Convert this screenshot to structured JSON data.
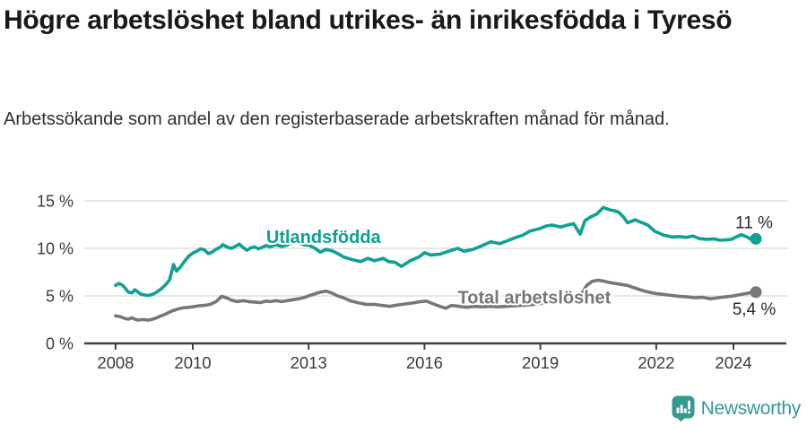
{
  "header": {
    "title": "Högre arbetslöshet bland utrikes- än inrikesfödda i Tyresö",
    "subtitle": "Arbetssökande som andel av den registerbaserade arbetskraften månad för månad."
  },
  "chart_data": {
    "type": "line",
    "title": "Högre arbetslöshet bland utrikes- än inrikesfödda i Tyresö",
    "subtitle": "Arbetssökande som andel av den registerbaserade arbetskraften månad för månad.",
    "grid": "horizontal",
    "legend_position": "inline-labels",
    "x_axis": {
      "ticks": [
        2008,
        2010,
        2013,
        2016,
        2019,
        2022,
        2024
      ],
      "labels": [
        "2008",
        "2010",
        "2013",
        "2016",
        "2019",
        "2022",
        "2024"
      ],
      "range": [
        2007.19,
        2025.37
      ]
    },
    "y_axis": {
      "ticks": [
        0,
        5,
        10,
        15
      ],
      "labels": [
        "0 %",
        "5 %",
        "10 %",
        "15 %"
      ],
      "range": [
        0,
        15
      ]
    },
    "colors": {
      "axis": "#3f3f3f",
      "grid": "#d8d8d8",
      "tick_text": "#3a3a3a",
      "value_text": "#2a2a2a"
    },
    "series": [
      {
        "name": "Utlandsfödda",
        "color": "#0fa194",
        "end_label": "11 %",
        "end_value": 11.0,
        "label_anchor": {
          "year": 2011.9,
          "value": 10.55
        },
        "end_label_offset": [
          -2,
          -12
        ],
        "points": [
          [
            2008.0,
            6.1
          ],
          [
            2008.08,
            6.3
          ],
          [
            2008.17,
            6.15
          ],
          [
            2008.25,
            5.8
          ],
          [
            2008.33,
            5.4
          ],
          [
            2008.42,
            5.3
          ],
          [
            2008.5,
            5.65
          ],
          [
            2008.58,
            5.4
          ],
          [
            2008.67,
            5.15
          ],
          [
            2008.75,
            5.1
          ],
          [
            2008.83,
            5.05
          ],
          [
            2008.92,
            5.1
          ],
          [
            2009.0,
            5.25
          ],
          [
            2009.1,
            5.5
          ],
          [
            2009.2,
            5.8
          ],
          [
            2009.3,
            6.2
          ],
          [
            2009.4,
            6.7
          ],
          [
            2009.5,
            8.3
          ],
          [
            2009.58,
            7.6
          ],
          [
            2009.67,
            8.0
          ],
          [
            2009.78,
            8.6
          ],
          [
            2009.9,
            9.2
          ],
          [
            2010.0,
            9.5
          ],
          [
            2010.1,
            9.7
          ],
          [
            2010.2,
            9.95
          ],
          [
            2010.3,
            9.85
          ],
          [
            2010.4,
            9.45
          ],
          [
            2010.5,
            9.6
          ],
          [
            2010.6,
            9.9
          ],
          [
            2010.7,
            10.1
          ],
          [
            2010.78,
            10.4
          ],
          [
            2010.88,
            10.15
          ],
          [
            2011.0,
            10.0
          ],
          [
            2011.1,
            10.2
          ],
          [
            2011.2,
            10.45
          ],
          [
            2011.3,
            10.1
          ],
          [
            2011.4,
            9.8
          ],
          [
            2011.5,
            10.05
          ],
          [
            2011.6,
            10.15
          ],
          [
            2011.7,
            9.95
          ],
          [
            2011.8,
            10.1
          ],
          [
            2011.9,
            10.3
          ],
          [
            2012.0,
            10.15
          ],
          [
            2012.15,
            10.4
          ],
          [
            2012.3,
            10.2
          ],
          [
            2012.45,
            10.35
          ],
          [
            2012.6,
            10.75
          ],
          [
            2012.75,
            10.55
          ],
          [
            2012.9,
            10.35
          ],
          [
            2013.0,
            10.35
          ],
          [
            2013.15,
            10.05
          ],
          [
            2013.3,
            9.6
          ],
          [
            2013.45,
            9.9
          ],
          [
            2013.6,
            9.75
          ],
          [
            2013.78,
            9.4
          ],
          [
            2013.9,
            9.1
          ],
          [
            2014.14,
            8.8
          ],
          [
            2014.35,
            8.6
          ],
          [
            2014.53,
            8.95
          ],
          [
            2014.7,
            8.7
          ],
          [
            2014.93,
            8.95
          ],
          [
            2015.07,
            8.6
          ],
          [
            2015.23,
            8.55
          ],
          [
            2015.4,
            8.1
          ],
          [
            2015.63,
            8.7
          ],
          [
            2015.86,
            9.1
          ],
          [
            2016.0,
            9.55
          ],
          [
            2016.16,
            9.3
          ],
          [
            2016.4,
            9.4
          ],
          [
            2016.7,
            9.8
          ],
          [
            2016.86,
            10.0
          ],
          [
            2017.02,
            9.7
          ],
          [
            2017.26,
            9.9
          ],
          [
            2017.5,
            10.3
          ],
          [
            2017.72,
            10.7
          ],
          [
            2017.95,
            10.5
          ],
          [
            2018.15,
            10.8
          ],
          [
            2018.33,
            11.1
          ],
          [
            2018.55,
            11.4
          ],
          [
            2018.72,
            11.8
          ],
          [
            2019.0,
            12.1
          ],
          [
            2019.15,
            12.35
          ],
          [
            2019.3,
            12.45
          ],
          [
            2019.53,
            12.25
          ],
          [
            2019.7,
            12.45
          ],
          [
            2019.86,
            12.6
          ],
          [
            2020.03,
            11.5
          ],
          [
            2020.15,
            12.9
          ],
          [
            2020.3,
            13.3
          ],
          [
            2020.46,
            13.6
          ],
          [
            2020.63,
            14.3
          ],
          [
            2020.8,
            14.05
          ],
          [
            2020.93,
            13.95
          ],
          [
            2021.03,
            13.8
          ],
          [
            2021.15,
            13.3
          ],
          [
            2021.26,
            12.7
          ],
          [
            2021.45,
            13.0
          ],
          [
            2021.6,
            12.75
          ],
          [
            2021.78,
            12.45
          ],
          [
            2021.96,
            11.8
          ],
          [
            2022.19,
            11.4
          ],
          [
            2022.4,
            11.2
          ],
          [
            2022.6,
            11.25
          ],
          [
            2022.78,
            11.15
          ],
          [
            2022.95,
            11.3
          ],
          [
            2023.1,
            11.05
          ],
          [
            2023.3,
            10.95
          ],
          [
            2023.5,
            11.0
          ],
          [
            2023.65,
            10.85
          ],
          [
            2023.8,
            10.9
          ],
          [
            2023.95,
            10.95
          ],
          [
            2024.05,
            11.15
          ],
          [
            2024.2,
            11.45
          ],
          [
            2024.35,
            11.2
          ],
          [
            2024.45,
            10.95
          ],
          [
            2024.58,
            11.0
          ]
        ]
      },
      {
        "name": "Total arbetslöshet",
        "color": "#77777b",
        "end_label": "5,4 %",
        "end_value": 5.4,
        "label_anchor": {
          "year": 2016.86,
          "value": 4.22
        },
        "end_label_offset": [
          -2,
          25
        ],
        "points": [
          [
            2008.0,
            2.9
          ],
          [
            2008.08,
            2.85
          ],
          [
            2008.17,
            2.75
          ],
          [
            2008.25,
            2.6
          ],
          [
            2008.33,
            2.55
          ],
          [
            2008.42,
            2.7
          ],
          [
            2008.5,
            2.55
          ],
          [
            2008.58,
            2.45
          ],
          [
            2008.67,
            2.5
          ],
          [
            2008.75,
            2.5
          ],
          [
            2008.83,
            2.45
          ],
          [
            2008.92,
            2.5
          ],
          [
            2009.0,
            2.6
          ],
          [
            2009.15,
            2.85
          ],
          [
            2009.3,
            3.1
          ],
          [
            2009.45,
            3.4
          ],
          [
            2009.6,
            3.6
          ],
          [
            2009.75,
            3.75
          ],
          [
            2009.9,
            3.8
          ],
          [
            2010.0,
            3.85
          ],
          [
            2010.15,
            3.95
          ],
          [
            2010.3,
            4.0
          ],
          [
            2010.45,
            4.1
          ],
          [
            2010.6,
            4.4
          ],
          [
            2010.75,
            4.95
          ],
          [
            2010.9,
            4.75
          ],
          [
            2011.0,
            4.55
          ],
          [
            2011.15,
            4.4
          ],
          [
            2011.3,
            4.5
          ],
          [
            2011.45,
            4.4
          ],
          [
            2011.6,
            4.35
          ],
          [
            2011.75,
            4.3
          ],
          [
            2011.9,
            4.45
          ],
          [
            2012.0,
            4.4
          ],
          [
            2012.15,
            4.5
          ],
          [
            2012.3,
            4.4
          ],
          [
            2012.45,
            4.5
          ],
          [
            2012.6,
            4.6
          ],
          [
            2012.75,
            4.7
          ],
          [
            2012.9,
            4.85
          ],
          [
            2013.0,
            5.0
          ],
          [
            2013.15,
            5.2
          ],
          [
            2013.3,
            5.4
          ],
          [
            2013.45,
            5.5
          ],
          [
            2013.6,
            5.3
          ],
          [
            2013.75,
            5.0
          ],
          [
            2013.9,
            4.8
          ],
          [
            2014.1,
            4.45
          ],
          [
            2014.3,
            4.25
          ],
          [
            2014.5,
            4.1
          ],
          [
            2014.7,
            4.1
          ],
          [
            2014.9,
            4.0
          ],
          [
            2015.1,
            3.9
          ],
          [
            2015.3,
            4.05
          ],
          [
            2015.5,
            4.15
          ],
          [
            2015.7,
            4.25
          ],
          [
            2015.9,
            4.4
          ],
          [
            2016.05,
            4.45
          ],
          [
            2016.2,
            4.2
          ],
          [
            2016.4,
            3.9
          ],
          [
            2016.55,
            3.7
          ],
          [
            2016.7,
            4.0
          ],
          [
            2016.9,
            3.9
          ],
          [
            2017.1,
            3.8
          ],
          [
            2017.3,
            3.9
          ],
          [
            2017.5,
            3.85
          ],
          [
            2017.7,
            3.9
          ],
          [
            2017.9,
            3.85
          ],
          [
            2018.1,
            3.9
          ],
          [
            2018.3,
            3.95
          ],
          [
            2018.5,
            4.0
          ],
          [
            2018.7,
            4.05
          ],
          [
            2018.9,
            4.15
          ],
          [
            2019.1,
            4.25
          ],
          [
            2019.3,
            4.35
          ],
          [
            2019.5,
            4.45
          ],
          [
            2019.7,
            4.55
          ],
          [
            2019.9,
            4.7
          ],
          [
            2020.05,
            5.1
          ],
          [
            2020.2,
            6.1
          ],
          [
            2020.35,
            6.55
          ],
          [
            2020.5,
            6.65
          ],
          [
            2020.65,
            6.55
          ],
          [
            2020.8,
            6.4
          ],
          [
            2020.95,
            6.3
          ],
          [
            2021.1,
            6.2
          ],
          [
            2021.25,
            6.1
          ],
          [
            2021.4,
            5.9
          ],
          [
            2021.55,
            5.7
          ],
          [
            2021.7,
            5.5
          ],
          [
            2021.85,
            5.35
          ],
          [
            2022.0,
            5.25
          ],
          [
            2022.2,
            5.15
          ],
          [
            2022.4,
            5.05
          ],
          [
            2022.6,
            4.95
          ],
          [
            2022.8,
            4.9
          ],
          [
            2023.0,
            4.8
          ],
          [
            2023.2,
            4.85
          ],
          [
            2023.4,
            4.7
          ],
          [
            2023.6,
            4.8
          ],
          [
            2023.8,
            4.9
          ],
          [
            2024.0,
            5.0
          ],
          [
            2024.2,
            5.15
          ],
          [
            2024.4,
            5.3
          ],
          [
            2024.58,
            5.4
          ]
        ]
      }
    ]
  },
  "footer": {
    "brand": "Newsworthy",
    "logo_color": "#339a91",
    "icon": "newsworthy-speech-bubble-bar-chart-icon"
  }
}
